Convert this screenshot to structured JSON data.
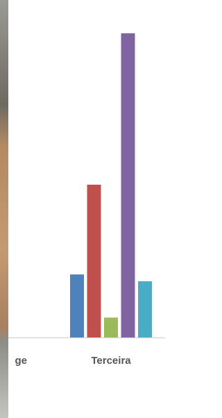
{
  "chart_data": {
    "type": "bar",
    "categories": [
      "ge",
      "Terceira"
    ],
    "series": [
      {
        "color": "#4f81bd",
        "values": [
          null,
          92
        ]
      },
      {
        "color": "#c0504d",
        "values": [
          null,
          223
        ]
      },
      {
        "color": "#9bbb59",
        "values": [
          null,
          29
        ]
      },
      {
        "color": "#8064a2",
        "values": [
          null,
          444
        ]
      },
      {
        "color": "#4bacc6",
        "values": [
          null,
          82
        ]
      }
    ],
    "ylim": [
      0,
      450
    ]
  }
}
